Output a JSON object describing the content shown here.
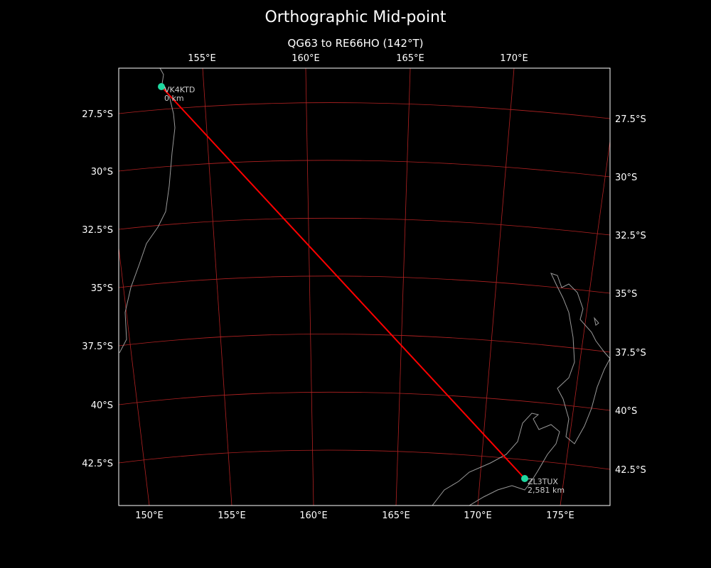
{
  "title": "Orthographic Mid-point",
  "subtitle": "QG63 to RE66HO (142°T)",
  "colors": {
    "background": "#000000",
    "grid": "#b22222",
    "path": "#ff0000",
    "station": "#1fd8a0",
    "coast": "#999999",
    "frame": "#ffffff"
  },
  "top_lon_labels": [
    "155°E",
    "160°E",
    "165°E",
    "170°E"
  ],
  "bottom_lon_labels": [
    "150°E",
    "155°E",
    "160°E",
    "165°E",
    "170°E",
    "175°E"
  ],
  "left_lat_labels": [
    "27.5°S",
    "30°S",
    "32.5°S",
    "35°S",
    "37.5°S",
    "40°S",
    "42.5°S"
  ],
  "right_lat_labels": [
    "27.5°S",
    "30°S",
    "32.5°S",
    "35°S",
    "37.5°S",
    "40°S",
    "42.5°S"
  ],
  "stations": [
    {
      "call": "VK4KTD",
      "distance": "0 km"
    },
    {
      "call": "ZL3TUX",
      "distance": "2,581 km"
    }
  ]
}
